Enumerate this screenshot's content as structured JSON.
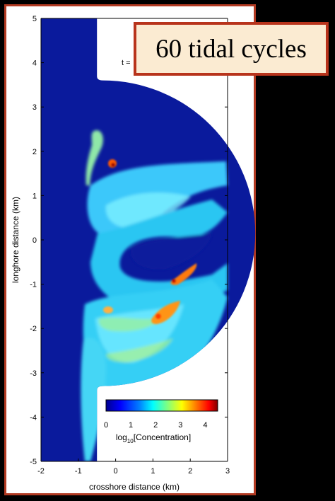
{
  "banner": {
    "text": "60 tidal cycles"
  },
  "time_label": "t =",
  "chart_data": {
    "type": "heatmap",
    "title": "",
    "xlabel": "crosshore distance (km)",
    "ylabel": "longhore distance (km)",
    "xlim": [
      -2,
      3
    ],
    "ylim": [
      -5,
      5
    ],
    "x_ticks": [
      "-2",
      "-1",
      "0",
      "1",
      "2",
      "3"
    ],
    "y_ticks": [
      "5",
      "4",
      "3",
      "2",
      "1",
      "0",
      "-1",
      "-2",
      "-3",
      "-4",
      "-5"
    ],
    "colorbar": {
      "label_prefix": "log",
      "label_sub": "10",
      "label_suffix": "[Concentration]",
      "range": [
        0,
        4.5
      ],
      "ticks": [
        "0",
        "1",
        "2",
        "3",
        "4"
      ],
      "colormap": [
        "#00008f",
        "#0000ff",
        "#0080ff",
        "#00ffff",
        "#80ff80",
        "#ffff00",
        "#ff8000",
        "#ff0000",
        "#800000"
      ]
    },
    "grid": false,
    "colors": {
      "background_field": "#0a1a9c",
      "plume_light": "#28c8f0",
      "plume_mid": "#5ce6ff",
      "hotspot": "#ff4a00"
    }
  }
}
